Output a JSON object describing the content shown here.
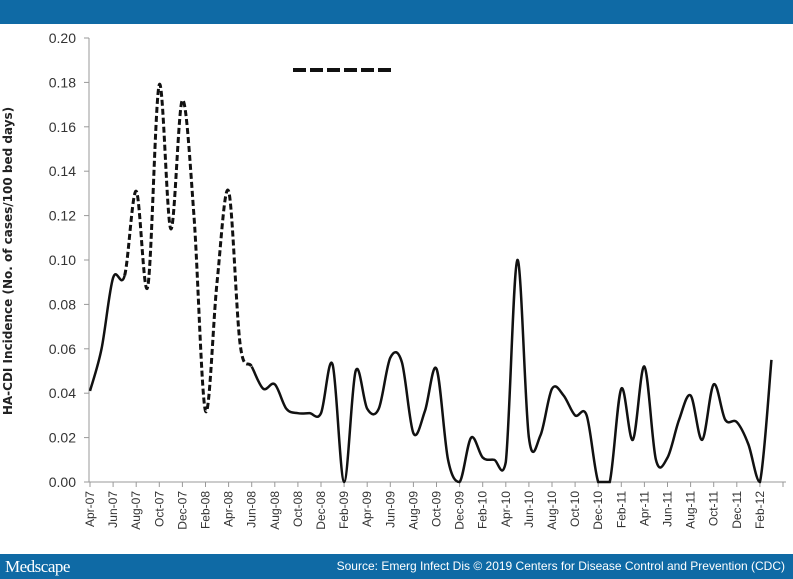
{
  "header": {
    "bar_color": "#0f6aa5"
  },
  "footer": {
    "brand": "Medscape",
    "source": "Source: Emerg Infect Dis © 2019 Centers for Disease Control and Prevention (CDC)"
  },
  "chart_data": {
    "type": "line",
    "title": "",
    "xlabel": "",
    "ylabel": "HA-CDI Incidence (No. of cases/100 bed days)",
    "ylim": [
      0,
      0.2
    ],
    "yticks": [
      "0.00",
      "0.02",
      "0.04",
      "0.06",
      "0.08",
      "0.10",
      "0.12",
      "0.14",
      "0.16",
      "0.18",
      "0.20"
    ],
    "grid": false,
    "legend": {
      "position": "top-center",
      "entries": [
        {
          "style": "dashed",
          "label": ""
        }
      ]
    },
    "x_tick_labels": [
      "Apr-07",
      "Jun-07",
      "Aug-07",
      "Oct-07",
      "Dec-07",
      "Feb-08",
      "Apr-08",
      "Jun-08",
      "Aug-08",
      "Oct-08",
      "Dec-08",
      "Feb-09",
      "Apr-09",
      "Jun-09",
      "Aug-09",
      "Oct-09",
      "Dec-09",
      "Feb-10",
      "Apr-10",
      "Jun-10",
      "Aug-10",
      "Oct-10",
      "Dec-10",
      "Feb-11",
      "Apr-11",
      "Jun-11",
      "Aug-11",
      "Oct-11",
      "Dec-11",
      "Feb-12"
    ],
    "x": [
      "Apr-07",
      "May-07",
      "Jun-07",
      "Jul-07",
      "Aug-07",
      "Sep-07",
      "Oct-07",
      "Nov-07",
      "Dec-07",
      "Jan-08",
      "Feb-08",
      "Mar-08",
      "Apr-08",
      "May-08",
      "Jun-08",
      "Jul-08",
      "Aug-08",
      "Sep-08",
      "Oct-08",
      "Nov-08",
      "Dec-08",
      "Jan-09",
      "Feb-09",
      "Mar-09",
      "Apr-09",
      "May-09",
      "Jun-09",
      "Jul-09",
      "Aug-09",
      "Sep-09",
      "Oct-09",
      "Nov-09",
      "Dec-09",
      "Jan-10",
      "Feb-10",
      "Mar-10",
      "Apr-10",
      "May-10",
      "Jun-10",
      "Jul-10",
      "Aug-10",
      "Sep-10",
      "Oct-10",
      "Nov-10",
      "Dec-10",
      "Jan-11",
      "Feb-11",
      "Mar-11",
      "Apr-11",
      "May-11",
      "Jun-11",
      "Jul-11",
      "Aug-11",
      "Sep-11",
      "Oct-11",
      "Nov-11",
      "Dec-11",
      "Jan-12",
      "Feb-12",
      "Mar-12"
    ],
    "series": [
      {
        "name": "HA-CDI incidence",
        "values": [
          0.041,
          0.06,
          0.092,
          0.093,
          0.131,
          0.088,
          0.179,
          0.114,
          0.172,
          0.12,
          0.032,
          0.09,
          0.131,
          0.062,
          0.052,
          0.042,
          0.044,
          0.033,
          0.031,
          0.031,
          0.031,
          0.053,
          0.0,
          0.05,
          0.033,
          0.033,
          0.056,
          0.054,
          0.022,
          0.032,
          0.051,
          0.01,
          0.0,
          0.02,
          0.011,
          0.01,
          0.009,
          0.1,
          0.02,
          0.021,
          0.042,
          0.039,
          0.03,
          0.03,
          0.0,
          0.0,
          0.042,
          0.019,
          0.052,
          0.01,
          0.011,
          0.028,
          0.039,
          0.019,
          0.044,
          0.028,
          0.027,
          0.017,
          0.0,
          0.055
        ],
        "dashed_range": [
          "Jul-07",
          "Jun-08"
        ]
      }
    ]
  }
}
